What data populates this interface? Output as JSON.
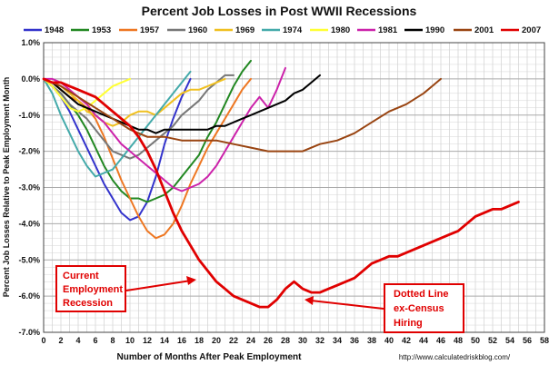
{
  "chart_data": {
    "type": "line",
    "title": "Percent Job Losses in Post WWII Recessions",
    "xlabel": "Number of Months After Peak Employment",
    "ylabel": "Percent Job Losses Relative to Peak Employment Month",
    "source": "http://www.calculatedriskblog.com/",
    "xlim": [
      0,
      58
    ],
    "ylim": [
      -7,
      1
    ],
    "x_ticks": [
      "0",
      "2",
      "4",
      "6",
      "8",
      "10",
      "12",
      "14",
      "16",
      "18",
      "20",
      "22",
      "24",
      "26",
      "28",
      "30",
      "32",
      "34",
      "36",
      "38",
      "40",
      "42",
      "44",
      "46",
      "48",
      "50",
      "52",
      "54",
      "56",
      "58"
    ],
    "y_ticks": [
      "1.0%",
      "0.0%",
      "-1.0%",
      "-2.0%",
      "-3.0%",
      "-4.0%",
      "-5.0%",
      "-6.0%",
      "-7.0%"
    ],
    "grid": true,
    "legend_placement": "top",
    "series": [
      {
        "name": "1948",
        "color": "#3333cc",
        "values": [
          [
            0,
            0
          ],
          [
            1,
            -0.2
          ],
          [
            2,
            -0.5
          ],
          [
            3,
            -0.9
          ],
          [
            4,
            -1.4
          ],
          [
            5,
            -1.9
          ],
          [
            6,
            -2.4
          ],
          [
            7,
            -2.9
          ],
          [
            8,
            -3.3
          ],
          [
            9,
            -3.7
          ],
          [
            10,
            -3.9
          ],
          [
            11,
            -3.8
          ],
          [
            12,
            -3.4
          ],
          [
            13,
            -2.7
          ],
          [
            14,
            -1.8
          ],
          [
            15,
            -1.1
          ],
          [
            16,
            -0.5
          ],
          [
            17,
            0
          ]
        ]
      },
      {
        "name": "1953",
        "color": "#228822",
        "values": [
          [
            0,
            0
          ],
          [
            1,
            -0.2
          ],
          [
            2,
            -0.4
          ],
          [
            3,
            -0.7
          ],
          [
            4,
            -1.0
          ],
          [
            5,
            -1.4
          ],
          [
            6,
            -1.9
          ],
          [
            7,
            -2.4
          ],
          [
            8,
            -2.8
          ],
          [
            9,
            -3.1
          ],
          [
            10,
            -3.3
          ],
          [
            11,
            -3.3
          ],
          [
            12,
            -3.4
          ],
          [
            13,
            -3.3
          ],
          [
            14,
            -3.2
          ],
          [
            15,
            -3.0
          ],
          [
            16,
            -2.7
          ],
          [
            17,
            -2.4
          ],
          [
            18,
            -2.1
          ],
          [
            19,
            -1.6
          ],
          [
            20,
            -1.2
          ],
          [
            21,
            -0.7
          ],
          [
            22,
            -0.2
          ],
          [
            23,
            0.2
          ],
          [
            24,
            0.5
          ]
        ]
      },
      {
        "name": "1957",
        "color": "#ee7722",
        "values": [
          [
            0,
            0
          ],
          [
            1,
            -0.1
          ],
          [
            2,
            -0.3
          ],
          [
            3,
            -0.5
          ],
          [
            4,
            -0.6
          ],
          [
            5,
            -0.8
          ],
          [
            6,
            -1.1
          ],
          [
            7,
            -1.6
          ],
          [
            8,
            -2.2
          ],
          [
            9,
            -2.8
          ],
          [
            10,
            -3.3
          ],
          [
            11,
            -3.8
          ],
          [
            12,
            -4.2
          ],
          [
            13,
            -4.4
          ],
          [
            14,
            -4.3
          ],
          [
            15,
            -4.0
          ],
          [
            16,
            -3.5
          ],
          [
            17,
            -2.9
          ],
          [
            18,
            -2.4
          ],
          [
            19,
            -1.9
          ],
          [
            20,
            -1.5
          ],
          [
            21,
            -1.1
          ],
          [
            22,
            -0.7
          ],
          [
            23,
            -0.3
          ],
          [
            24,
            0
          ]
        ]
      },
      {
        "name": "1960",
        "color": "#777777",
        "values": [
          [
            0,
            0
          ],
          [
            1,
            -0.2
          ],
          [
            2,
            -0.4
          ],
          [
            3,
            -0.7
          ],
          [
            4,
            -0.9
          ],
          [
            5,
            -1.1
          ],
          [
            6,
            -1.4
          ],
          [
            7,
            -1.7
          ],
          [
            8,
            -2.0
          ],
          [
            9,
            -2.1
          ],
          [
            10,
            -2.2
          ],
          [
            11,
            -2.1
          ],
          [
            12,
            -1.9
          ],
          [
            13,
            -1.7
          ],
          [
            14,
            -1.5
          ],
          [
            15,
            -1.3
          ],
          [
            16,
            -1.0
          ],
          [
            17,
            -0.8
          ],
          [
            18,
            -0.6
          ],
          [
            19,
            -0.3
          ],
          [
            20,
            -0.1
          ],
          [
            21,
            0.1
          ],
          [
            22,
            0.1
          ]
        ]
      },
      {
        "name": "1969",
        "color": "#f0c020",
        "values": [
          [
            0,
            0
          ],
          [
            1,
            -0.1
          ],
          [
            2,
            -0.2
          ],
          [
            3,
            -0.4
          ],
          [
            4,
            -0.6
          ],
          [
            5,
            -0.9
          ],
          [
            6,
            -1.0
          ],
          [
            7,
            -1.2
          ],
          [
            8,
            -1.3
          ],
          [
            9,
            -1.2
          ],
          [
            10,
            -1.0
          ],
          [
            11,
            -0.9
          ],
          [
            12,
            -0.9
          ],
          [
            13,
            -1.0
          ],
          [
            14,
            -0.8
          ],
          [
            15,
            -0.6
          ],
          [
            16,
            -0.4
          ],
          [
            17,
            -0.3
          ],
          [
            18,
            -0.3
          ],
          [
            19,
            -0.2
          ],
          [
            20,
            -0.1
          ],
          [
            21,
            0
          ]
        ]
      },
      {
        "name": "1974",
        "color": "#44aaaa",
        "values": [
          [
            0,
            0
          ],
          [
            1,
            -0.4
          ],
          [
            2,
            -1.0
          ],
          [
            3,
            -1.5
          ],
          [
            4,
            -2.0
          ],
          [
            5,
            -2.4
          ],
          [
            6,
            -2.7
          ],
          [
            7,
            -2.6
          ],
          [
            8,
            -2.5
          ],
          [
            9,
            -2.2
          ],
          [
            10,
            -1.9
          ],
          [
            11,
            -1.6
          ],
          [
            12,
            -1.3
          ],
          [
            13,
            -1.0
          ],
          [
            14,
            -0.7
          ],
          [
            15,
            -0.4
          ],
          [
            16,
            -0.1
          ],
          [
            17,
            0.2
          ]
        ]
      },
      {
        "name": "1980",
        "color": "#ffff33",
        "values": [
          [
            0,
            0
          ],
          [
            1,
            -0.2
          ],
          [
            2,
            -0.5
          ],
          [
            3,
            -0.8
          ],
          [
            4,
            -0.9
          ],
          [
            5,
            -0.8
          ],
          [
            6,
            -0.6
          ],
          [
            7,
            -0.4
          ],
          [
            8,
            -0.2
          ],
          [
            9,
            -0.1
          ],
          [
            10,
            0
          ]
        ]
      },
      {
        "name": "1981",
        "color": "#cc22aa",
        "values": [
          [
            0,
            0
          ],
          [
            1,
            0
          ],
          [
            2,
            -0.1
          ],
          [
            3,
            -0.3
          ],
          [
            4,
            -0.5
          ],
          [
            5,
            -0.7
          ],
          [
            6,
            -1.0
          ],
          [
            7,
            -1.2
          ],
          [
            8,
            -1.5
          ],
          [
            9,
            -1.8
          ],
          [
            10,
            -2.0
          ],
          [
            11,
            -2.2
          ],
          [
            12,
            -2.4
          ],
          [
            13,
            -2.6
          ],
          [
            14,
            -2.8
          ],
          [
            15,
            -3.0
          ],
          [
            16,
            -3.1
          ],
          [
            17,
            -3.0
          ],
          [
            18,
            -2.9
          ],
          [
            19,
            -2.7
          ],
          [
            20,
            -2.4
          ],
          [
            21,
            -2.0
          ],
          [
            22,
            -1.6
          ],
          [
            23,
            -1.2
          ],
          [
            24,
            -0.8
          ],
          [
            25,
            -0.5
          ],
          [
            26,
            -0.8
          ],
          [
            27,
            -0.3
          ],
          [
            28,
            0.3
          ]
        ]
      },
      {
        "name": "1990",
        "color": "#000000",
        "values": [
          [
            0,
            0
          ],
          [
            1,
            -0.1
          ],
          [
            2,
            -0.3
          ],
          [
            3,
            -0.5
          ],
          [
            4,
            -0.7
          ],
          [
            5,
            -0.8
          ],
          [
            6,
            -0.9
          ],
          [
            7,
            -1.0
          ],
          [
            8,
            -1.1
          ],
          [
            9,
            -1.2
          ],
          [
            10,
            -1.3
          ],
          [
            11,
            -1.4
          ],
          [
            12,
            -1.4
          ],
          [
            13,
            -1.5
          ],
          [
            14,
            -1.4
          ],
          [
            15,
            -1.4
          ],
          [
            16,
            -1.4
          ],
          [
            17,
            -1.4
          ],
          [
            18,
            -1.4
          ],
          [
            19,
            -1.4
          ],
          [
            20,
            -1.3
          ],
          [
            21,
            -1.3
          ],
          [
            22,
            -1.2
          ],
          [
            23,
            -1.1
          ],
          [
            24,
            -1.0
          ],
          [
            25,
            -0.9
          ],
          [
            26,
            -0.8
          ],
          [
            27,
            -0.7
          ],
          [
            28,
            -0.6
          ],
          [
            29,
            -0.4
          ],
          [
            30,
            -0.3
          ],
          [
            31,
            -0.1
          ],
          [
            32,
            0.1
          ]
        ]
      },
      {
        "name": "2001",
        "color": "#994411",
        "values": [
          [
            0,
            0
          ],
          [
            2,
            -0.2
          ],
          [
            4,
            -0.5
          ],
          [
            6,
            -0.8
          ],
          [
            8,
            -1.1
          ],
          [
            10,
            -1.4
          ],
          [
            12,
            -1.6
          ],
          [
            14,
            -1.6
          ],
          [
            16,
            -1.7
          ],
          [
            18,
            -1.7
          ],
          [
            20,
            -1.7
          ],
          [
            22,
            -1.8
          ],
          [
            24,
            -1.9
          ],
          [
            26,
            -2.0
          ],
          [
            28,
            -2.0
          ],
          [
            30,
            -2.0
          ],
          [
            32,
            -1.8
          ],
          [
            34,
            -1.7
          ],
          [
            36,
            -1.5
          ],
          [
            38,
            -1.2
          ],
          [
            40,
            -0.9
          ],
          [
            42,
            -0.7
          ],
          [
            44,
            -0.4
          ],
          [
            45,
            -0.2
          ],
          [
            46,
            0
          ]
        ]
      },
      {
        "name": "2007",
        "color": "#e00000",
        "values": [
          [
            0,
            0
          ],
          [
            1,
            -0.1
          ],
          [
            2,
            -0.1
          ],
          [
            3,
            -0.2
          ],
          [
            4,
            -0.3
          ],
          [
            5,
            -0.4
          ],
          [
            6,
            -0.5
          ],
          [
            7,
            -0.7
          ],
          [
            8,
            -0.9
          ],
          [
            9,
            -1.1
          ],
          [
            10,
            -1.3
          ],
          [
            11,
            -1.6
          ],
          [
            12,
            -2.0
          ],
          [
            13,
            -2.5
          ],
          [
            14,
            -3.1
          ],
          [
            15,
            -3.7
          ],
          [
            16,
            -4.2
          ],
          [
            17,
            -4.6
          ],
          [
            18,
            -5.0
          ],
          [
            19,
            -5.3
          ],
          [
            20,
            -5.6
          ],
          [
            21,
            -5.8
          ],
          [
            22,
            -6.0
          ],
          [
            23,
            -6.1
          ],
          [
            24,
            -6.2
          ],
          [
            25,
            -6.3
          ],
          [
            26,
            -6.3
          ],
          [
            27,
            -6.1
          ],
          [
            28,
            -5.8
          ],
          [
            29,
            -5.6
          ],
          [
            30,
            -5.8
          ],
          [
            31,
            -5.9
          ],
          [
            32,
            -5.9
          ],
          [
            33,
            -5.8
          ],
          [
            34,
            -5.7
          ],
          [
            35,
            -5.6
          ],
          [
            36,
            -5.5
          ],
          [
            37,
            -5.3
          ],
          [
            38,
            -5.1
          ],
          [
            39,
            -5.0
          ],
          [
            40,
            -4.9
          ],
          [
            41,
            -4.9
          ],
          [
            42,
            -4.8
          ],
          [
            43,
            -4.7
          ],
          [
            44,
            -4.6
          ],
          [
            45,
            -4.5
          ],
          [
            46,
            -4.4
          ],
          [
            47,
            -4.3
          ],
          [
            48,
            -4.2
          ],
          [
            49,
            -4.0
          ],
          [
            50,
            -3.8
          ],
          [
            51,
            -3.7
          ],
          [
            52,
            -3.6
          ],
          [
            53,
            -3.6
          ],
          [
            54,
            -3.5
          ],
          [
            55,
            -3.4
          ]
        ]
      }
    ],
    "annotations": [
      {
        "name": "current-employment-recession",
        "lines": [
          "Current",
          "Employment",
          "Recession"
        ]
      },
      {
        "name": "dotted-line-ex-census-hiring",
        "lines": [
          "Dotted Line",
          "ex-Census",
          "Hiring"
        ]
      }
    ]
  }
}
